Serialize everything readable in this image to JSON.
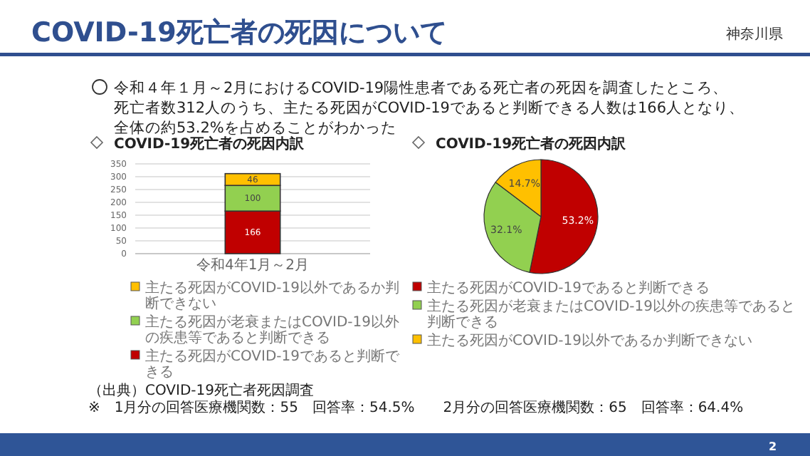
{
  "chart_data": [
    {
      "type": "bar",
      "title": "COVID-19死亡者の死因内訳",
      "stacked": true,
      "categories": [
        "令和4年1月～2月"
      ],
      "series": [
        {
          "name": "主たる死因がCOVID-19であると判断できる",
          "color": "#c00000",
          "values": [
            166
          ]
        },
        {
          "name": "主たる死因が老衰またはCOVID-19以外の疾患等であると判断できる",
          "color": "#92d050",
          "values": [
            100
          ]
        },
        {
          "name": "主たる死因がCOVID-19以外であるか判断できない",
          "color": "#ffc000",
          "values": [
            46
          ]
        }
      ],
      "ylim": [
        0,
        350
      ],
      "yticks": [
        0,
        50,
        100,
        150,
        200,
        250,
        300,
        350
      ],
      "grid": "y",
      "data_labels": true,
      "legend": "bottom",
      "annotations": [
        "COVID-19死亡者の死因について",
        "神奈川県",
        "令和４年１月～2月におけるCOVID-19陽性患者である死亡者の死因を調査したところ、",
        "死亡者数312人のうち、主たる死因がCOVID-19であると判断できる人数は166人となり、",
        "全体の約53.2%を占めることがわかった"
      ]
    },
    {
      "type": "pie",
      "title": "COVID-19死亡者の死因内訳",
      "categories": [
        "主たる死因がCOVID-19であると判断できる",
        "主たる死因が老衰またはCOVID-19以外の疾患等であると判断できる",
        "主たる死因がCOVID-19以外であるか判断できない"
      ],
      "values": [
        53.2,
        32.1,
        14.7
      ],
      "colors": [
        "#c00000",
        "#92d050",
        "#ffc000"
      ],
      "value_labels": [
        "53.2%",
        "32.1%",
        "14.7%"
      ],
      "legend": "bottom",
      "annotations": [
        "（出典）COVID-19死亡者死因調査",
        "※　1月分の回答医療機関数：55　回答率：54.5%　　2月分の回答医療機関数：65　回答率：64.4%",
        "2"
      ]
    }
  ]
}
